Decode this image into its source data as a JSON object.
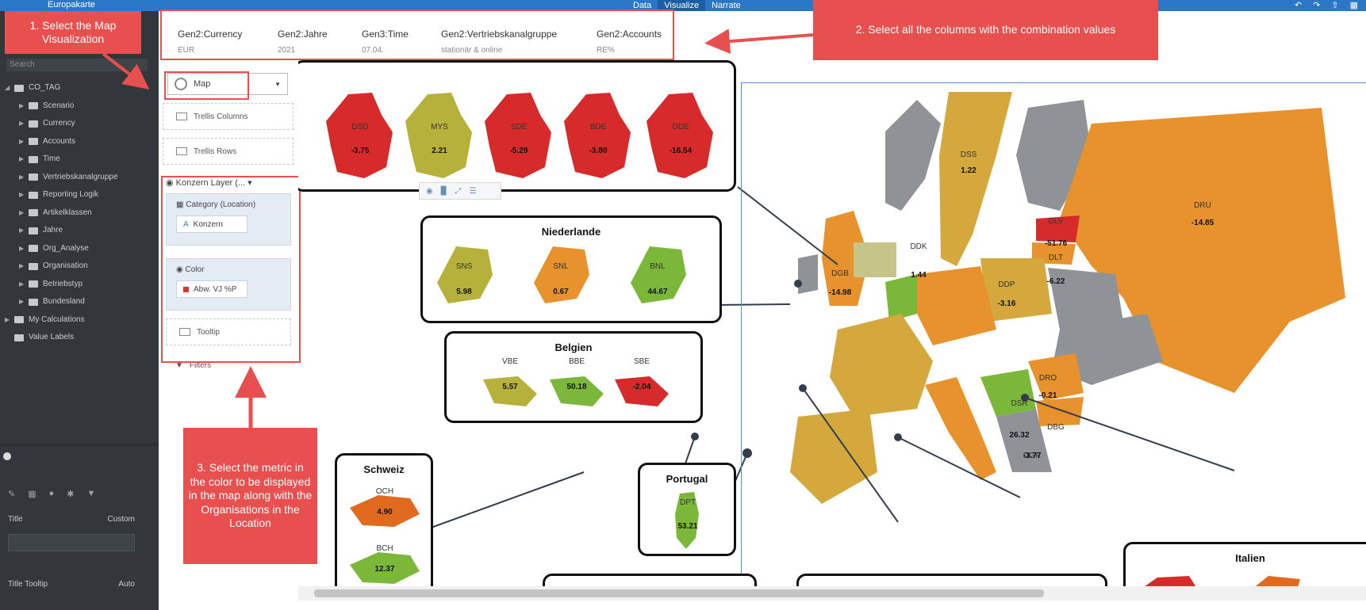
{
  "app": {
    "title": "Europakarte",
    "tabs": [
      {
        "label": "Data"
      },
      {
        "label": "Visualize"
      },
      {
        "label": "Narrate"
      }
    ]
  },
  "sidebar": {
    "search_placeholder": "Search",
    "tree": [
      {
        "label": "CO_TAG"
      },
      {
        "label": "Scenario"
      },
      {
        "label": "Currency"
      },
      {
        "label": "Accounts"
      },
      {
        "label": "Time"
      },
      {
        "label": "Vertriebskanalgruppe"
      },
      {
        "label": "Reporting Logik"
      },
      {
        "label": "Artikelklassen"
      },
      {
        "label": "Jahre"
      },
      {
        "label": "Org_Analyse"
      },
      {
        "label": "Organisation"
      },
      {
        "label": "Betriebstyp"
      },
      {
        "label": "Bundesland"
      },
      {
        "label": "My Calculations"
      },
      {
        "label": "Value Labels"
      }
    ],
    "properties": {
      "title_label": "Title",
      "title_value": "Custom",
      "tooltip_label": "Title Tooltip",
      "tooltip_value": "Auto"
    }
  },
  "header": {
    "columns": [
      {
        "name": "Gen2:Currency",
        "value": "EUR"
      },
      {
        "name": "Gen2:Jahre",
        "value": "2021"
      },
      {
        "name": "Gen3:Time",
        "value": "07.04."
      },
      {
        "name": "Gen2:Vertriebskanalgruppe",
        "value": "stationär & online"
      },
      {
        "name": "Gen2:Accounts",
        "value": "RE%"
      }
    ]
  },
  "builder": {
    "visualization": "Map",
    "trellis_columns": "Trellis Columns",
    "trellis_rows": "Trellis Rows",
    "layer": "Konzern Layer (...",
    "category_header": "Category (Location)",
    "category_chip": "Konzern",
    "color_header": "Color",
    "color_chip": "Abw. VJ %P",
    "tooltip": "Tooltip",
    "filters": "Filters"
  },
  "callouts": {
    "step1": "1. Select the Map Visualization",
    "step2": "2. Select all the columns with the combination values",
    "step3": "3. Select the metric in the color to be displayed in the map along with the Organisations in the Location"
  },
  "map": {
    "germany": [
      {
        "code": "DSD",
        "value": "-3.75",
        "color": "#d72b2b"
      },
      {
        "code": "MYS",
        "value": "2.21",
        "color": "#b6b13a"
      },
      {
        "code": "SDE",
        "value": "-5.29",
        "color": "#d72b2b"
      },
      {
        "code": "BDE",
        "value": "-3.80",
        "color": "#d72b2b"
      },
      {
        "code": "ODE",
        "value": "-16.54",
        "color": "#d72b2b"
      }
    ],
    "niederlande": {
      "title": "Niederlande",
      "countries": [
        {
          "code": "SNS",
          "value": "5.98",
          "color": "#b6b13a"
        },
        {
          "code": "SNL",
          "value": "0.67",
          "color": "#e8922e"
        },
        {
          "code": "BNL",
          "value": "44.67",
          "color": "#7bb83a"
        }
      ]
    },
    "belgien": {
      "title": "Belgien",
      "countries": [
        {
          "code": "VBE",
          "value": "5.57",
          "color": "#b6b13a"
        },
        {
          "code": "BBE",
          "value": "50.18",
          "color": "#7bb83a"
        },
        {
          "code": "SBE",
          "value": "-2.04",
          "color": "#d72b2b"
        }
      ]
    },
    "schweiz": {
      "title": "Schweiz",
      "countries": [
        {
          "code": "OCH",
          "value": "4.90",
          "color": "#e06a20"
        },
        {
          "code": "BCH",
          "value": "12.37",
          "color": "#7bb83a"
        }
      ]
    },
    "portugal": {
      "title": "Portugal",
      "countries": [
        {
          "code": "DPT",
          "value": "53.21",
          "color": "#7bb83a"
        }
      ]
    },
    "italien": {
      "title": "Italien"
    },
    "europe_labels": [
      {
        "code": "DSS",
        "value": "1.22"
      },
      {
        "code": "DRU",
        "value": "-14.85"
      },
      {
        "code": "DGB",
        "value": "-14.98"
      },
      {
        "code": "DDP",
        "value": "-3.16"
      },
      {
        "code": "DDK",
        "value": "1.44"
      },
      {
        "code": "DLV",
        "value": "-51.76"
      },
      {
        "code": "DLT",
        "value": "-6.22"
      },
      {
        "code": "DRO",
        "value": "-0.21"
      },
      {
        "code": "DBG",
        "value": ""
      },
      {
        "code": "DGR",
        "value": "-3.77"
      },
      {
        "code": "DSR",
        "value": "26.32"
      }
    ]
  }
}
